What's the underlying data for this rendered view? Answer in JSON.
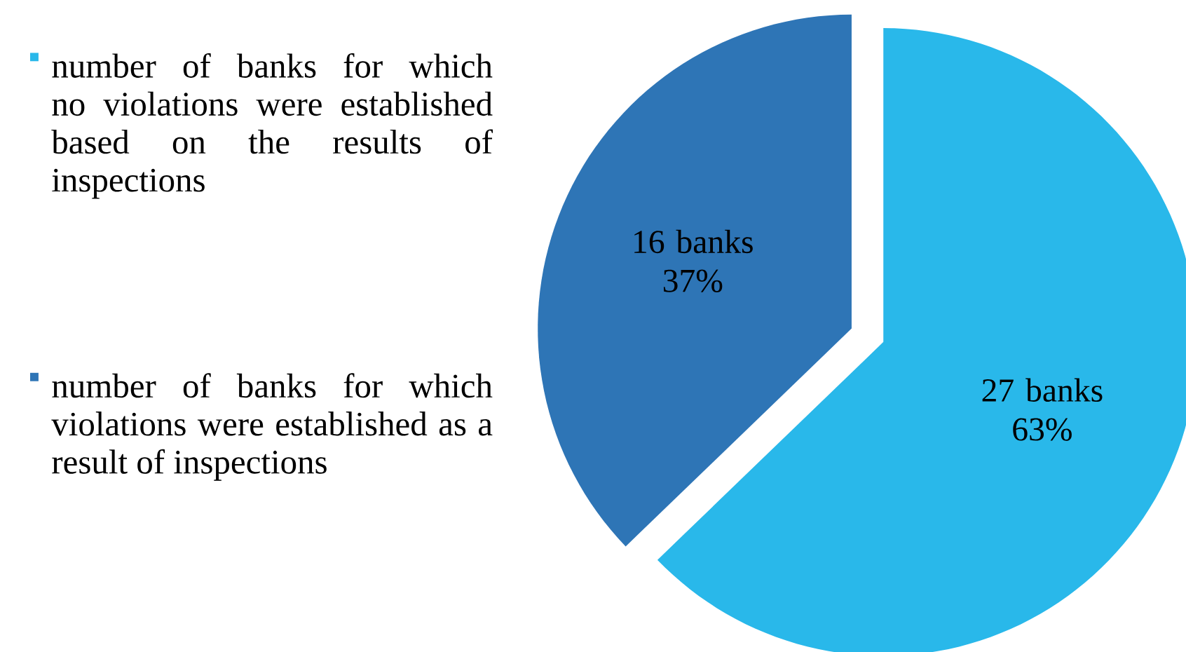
{
  "chart_data": {
    "type": "pie",
    "categories": [
      "number of banks for which no violations were established based on the results of inspections",
      "number of banks for which violations were established as a result of inspections"
    ],
    "values": [
      27,
      16
    ],
    "value_labels": [
      "27 banks 63%",
      "16 banks 37%"
    ],
    "colors": [
      "#29b8ea",
      "#2e75b6"
    ],
    "legend": "left"
  }
}
